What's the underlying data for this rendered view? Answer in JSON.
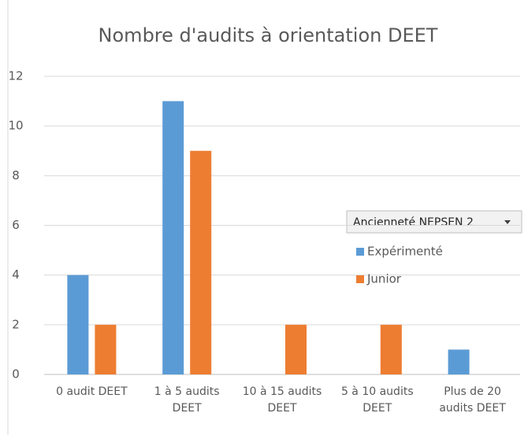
{
  "chart_data": {
    "type": "bar",
    "title": "Nombre d'audits à orientation DEET",
    "categories": [
      "0 audit DEET",
      "1 à 5 audits DEET",
      "10 à 15 audits DEET",
      "5 à 10 audits DEET",
      "Plus de 20 audits DEET"
    ],
    "series": [
      {
        "name": "Expérimenté",
        "color": "#5b9bd5",
        "values": [
          4,
          11,
          0,
          0,
          1
        ]
      },
      {
        "name": "Junior",
        "color": "#ed7d31",
        "values": [
          2,
          9,
          2,
          2,
          0
        ]
      }
    ],
    "legend_title": "Ancienneté NEPSEN 2",
    "legend_position": "right",
    "ylim": [
      0,
      12
    ],
    "yticks": [
      0,
      2,
      4,
      6,
      8,
      10,
      12
    ],
    "grid": true
  }
}
